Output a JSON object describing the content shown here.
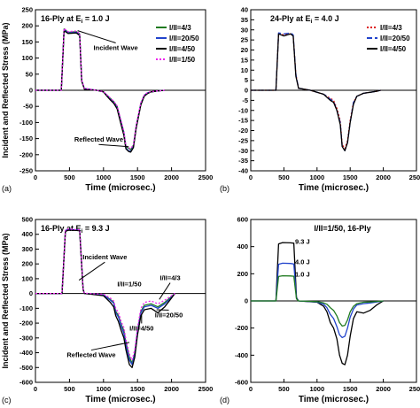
{
  "figure": {
    "shared_ylabel": "Incident and Reflected Stress (MPa)"
  },
  "chart_data": [
    {
      "type": "line",
      "panel": "(a)",
      "title": "16-Ply at E",
      "title_sub": "i",
      "title_tail": " = 1.0 J",
      "xlabel": "Time (microsec.)",
      "ylabel": "Incident and Reflected Stress (MPa)",
      "xlim": [
        0,
        2500
      ],
      "ylim": [
        -250,
        250
      ],
      "xticks": [
        0,
        500,
        1000,
        1500,
        2000,
        2500
      ],
      "yticks": [
        -250,
        -200,
        -150,
        -100,
        -50,
        0,
        50,
        100,
        150,
        200,
        250
      ],
      "legend": "top-right",
      "annotations": [
        {
          "text": "Incident Wave",
          "x": 1180,
          "y": 125,
          "arrow_to": [
            620,
            185
          ]
        },
        {
          "text": "Reflected Wave",
          "x": 930,
          "y": -160,
          "arrow_to": [
            1370,
            -175
          ]
        }
      ],
      "series": [
        {
          "name": "I/II=4/3",
          "color": "#1f7a1f",
          "style": "solid",
          "x": [
            0,
            380,
            420,
            480,
            600,
            650,
            680,
            720,
            900,
            1000,
            1050,
            1100,
            1150,
            1200,
            1250,
            1300,
            1330,
            1370,
            1400,
            1440,
            1480,
            1550,
            1600,
            1650,
            1700,
            1800,
            1900
          ],
          "y": [
            0,
            0,
            190,
            180,
            182,
            175,
            30,
            5,
            0,
            -5,
            -15,
            -25,
            -35,
            -50,
            -90,
            -130,
            -175,
            -180,
            -185,
            -170,
            -110,
            -40,
            -15,
            -8,
            -5,
            -2,
            0
          ]
        },
        {
          "name": "I/II=20/50",
          "color": "#2244cc",
          "style": "solid",
          "x": [
            0,
            380,
            420,
            480,
            600,
            650,
            680,
            720,
            900,
            1000,
            1050,
            1100,
            1150,
            1200,
            1250,
            1300,
            1330,
            1370,
            1400,
            1440,
            1480,
            1550,
            1600,
            1650,
            1700,
            1800,
            1900
          ],
          "y": [
            0,
            0,
            188,
            178,
            180,
            172,
            30,
            5,
            0,
            -5,
            -16,
            -28,
            -38,
            -55,
            -95,
            -135,
            -180,
            -188,
            -190,
            -175,
            -115,
            -42,
            -16,
            -8,
            -5,
            -2,
            0
          ]
        },
        {
          "name": "I/II=4/50",
          "color": "#000000",
          "style": "solid",
          "x": [
            0,
            380,
            420,
            480,
            600,
            650,
            680,
            720,
            900,
            1000,
            1050,
            1100,
            1150,
            1200,
            1250,
            1300,
            1330,
            1370,
            1400,
            1440,
            1480,
            1550,
            1600,
            1650,
            1700,
            1800,
            1900
          ],
          "y": [
            0,
            0,
            185,
            176,
            178,
            170,
            28,
            3,
            0,
            -5,
            -18,
            -30,
            -40,
            -58,
            -100,
            -140,
            -182,
            -190,
            -192,
            -178,
            -118,
            -45,
            -18,
            -10,
            -5,
            -2,
            0
          ]
        },
        {
          "name": "I/II=1/50",
          "color": "#ee22ee",
          "style": "dotted",
          "x": [
            0,
            380,
            420,
            480,
            600,
            650,
            680,
            720,
            900,
            1000,
            1050,
            1100,
            1150,
            1200,
            1250,
            1300,
            1330,
            1370,
            1400,
            1440,
            1480,
            1550,
            1600,
            1650,
            1700,
            1800,
            1900
          ],
          "y": [
            0,
            0,
            192,
            182,
            184,
            176,
            32,
            6,
            0,
            -4,
            -14,
            -24,
            -34,
            -48,
            -88,
            -128,
            -172,
            -178,
            -182,
            -168,
            -108,
            -38,
            -14,
            -7,
            -4,
            -2,
            0
          ]
        }
      ]
    },
    {
      "type": "line",
      "panel": "(b)",
      "title": "24-Ply at E",
      "title_sub": "i",
      "title_tail": " = 4.0 J",
      "xlabel": "Time (microsec.)",
      "ylabel": "",
      "xlim": [
        0,
        2500
      ],
      "ylim": [
        -40,
        40
      ],
      "xticks": [
        0,
        500,
        1000,
        1500,
        2000,
        2500
      ],
      "yticks": [
        -40,
        -35,
        -30,
        -25,
        -20,
        -15,
        -10,
        -5,
        0,
        5,
        10,
        15,
        20,
        25,
        30,
        35,
        40
      ],
      "legend": "top-right",
      "annotations": [],
      "series": [
        {
          "name": "I/II=4/3",
          "color": "#dd1111",
          "style": "dotted",
          "x": [
            0,
            380,
            420,
            500,
            600,
            640,
            680,
            720,
            900,
            1000,
            1100,
            1150,
            1200,
            1250,
            1300,
            1350,
            1380,
            1420,
            1460,
            1500,
            1550,
            1600,
            1700,
            1800,
            1900,
            1960
          ],
          "y": [
            0,
            0,
            28,
            27.5,
            28,
            27,
            8,
            1,
            0,
            -1,
            -2,
            -3,
            -4,
            -5,
            -9,
            -15,
            -27,
            -29,
            -25,
            -15,
            -6,
            -3,
            -1.5,
            -1,
            -0.5,
            0
          ]
        },
        {
          "name": "I/II=20/50",
          "color": "#2244cc",
          "style": "dashed",
          "x": [
            0,
            380,
            420,
            500,
            600,
            640,
            680,
            720,
            900,
            1000,
            1100,
            1150,
            1200,
            1250,
            1300,
            1350,
            1380,
            1420,
            1460,
            1500,
            1550,
            1600,
            1700,
            1800,
            1900,
            1960
          ],
          "y": [
            0,
            0,
            28.5,
            28,
            28.5,
            27.5,
            8,
            1,
            0,
            -1,
            -2,
            -3,
            -4.5,
            -5.5,
            -10,
            -16,
            -28,
            -30,
            -26,
            -16,
            -6,
            -3,
            -1.5,
            -1,
            -0.5,
            0
          ]
        },
        {
          "name": "I/II=4/50",
          "color": "#000000",
          "style": "solid",
          "x": [
            0,
            380,
            420,
            500,
            600,
            640,
            680,
            720,
            900,
            1000,
            1100,
            1150,
            1200,
            1250,
            1300,
            1350,
            1380,
            1420,
            1460,
            1500,
            1550,
            1600,
            1700,
            1800,
            1900,
            1960
          ],
          "y": [
            0,
            0,
            28,
            27,
            28,
            27,
            7,
            1,
            0,
            -1,
            -2,
            -3.5,
            -5,
            -6,
            -10,
            -17,
            -28,
            -30,
            -26,
            -16,
            -7,
            -3,
            -1.5,
            -1,
            -0.5,
            0
          ]
        }
      ]
    },
    {
      "type": "line",
      "panel": "(c)",
      "title": "16-Ply at E",
      "title_sub": "i",
      "title_tail": " = 9.3 J",
      "xlabel": "Time (microsec.)",
      "ylabel": "Incident and Reflected Stress (MPa)",
      "xlim": [
        0,
        2500
      ],
      "ylim": [
        -600,
        500
      ],
      "xticks": [
        0,
        500,
        1000,
        1500,
        2000,
        2500
      ],
      "yticks": [
        -600,
        -500,
        -400,
        -300,
        -200,
        -100,
        0,
        100,
        200,
        300,
        400,
        500
      ],
      "legend": "none",
      "annotations": [
        {
          "text": "Incident  Wave",
          "x": 1020,
          "y": 230,
          "arrow_to": [
            640,
            90
          ]
        },
        {
          "text": "Reflected Wave",
          "x": 820,
          "y": -430,
          "arrow_to": [
            1380,
            -330
          ]
        },
        {
          "text": "I/II=1/50",
          "x": 1380,
          "y": 50,
          "arrow_to": []
        },
        {
          "text": "I/II=4/3",
          "x": 1980,
          "y": 90,
          "arrow_to": [
            1820,
            -40
          ]
        },
        {
          "text": "I/II=20/50",
          "x": 1960,
          "y": -160,
          "arrow_to": [
            1780,
            -110
          ]
        },
        {
          "text": "I/II=4/50",
          "x": 1560,
          "y": -250,
          "arrow_to": [
            1560,
            -140
          ]
        }
      ],
      "series": [
        {
          "name": "",
          "color": "#1f7a1f",
          "style": "solid",
          "x": [
            0,
            390,
            440,
            480,
            600,
            650,
            700,
            720,
            1000,
            1100,
            1150,
            1180,
            1220,
            1260,
            1300,
            1330,
            1380,
            1420,
            1460,
            1500,
            1550,
            1600,
            1700,
            1800,
            1900,
            2000,
            2050
          ],
          "y": [
            0,
            0,
            420,
            430,
            428,
            425,
            30,
            0,
            -10,
            -40,
            -60,
            -120,
            -150,
            -210,
            -250,
            -330,
            -430,
            -470,
            -400,
            -250,
            -120,
            -80,
            -70,
            -90,
            -60,
            -20,
            0
          ]
        },
        {
          "name": "",
          "color": "#2244cc",
          "style": "solid",
          "x": [
            0,
            390,
            440,
            480,
            600,
            650,
            700,
            720,
            1000,
            1100,
            1150,
            1180,
            1220,
            1260,
            1300,
            1330,
            1380,
            1420,
            1460,
            1500,
            1550,
            1600,
            1700,
            1800,
            1900,
            2000,
            2050
          ],
          "y": [
            0,
            0,
            425,
            432,
            430,
            428,
            30,
            0,
            -10,
            -45,
            -65,
            -130,
            -160,
            -220,
            -270,
            -350,
            -450,
            -480,
            -410,
            -260,
            -130,
            -90,
            -80,
            -100,
            -70,
            -25,
            0
          ]
        },
        {
          "name": "",
          "color": "#000000",
          "style": "solid",
          "x": [
            0,
            390,
            440,
            480,
            600,
            650,
            700,
            720,
            1000,
            1100,
            1150,
            1180,
            1220,
            1260,
            1300,
            1330,
            1380,
            1420,
            1460,
            1500,
            1550,
            1600,
            1700,
            1800,
            1900,
            2000,
            2050
          ],
          "y": [
            0,
            0,
            418,
            428,
            426,
            424,
            25,
            0,
            -15,
            -60,
            -90,
            -150,
            -190,
            -250,
            -300,
            -380,
            -480,
            -500,
            -430,
            -280,
            -150,
            -110,
            -100,
            -130,
            -90,
            -30,
            0
          ]
        },
        {
          "name": "",
          "color": "#ee22ee",
          "style": "dotted",
          "x": [
            0,
            390,
            440,
            480,
            600,
            650,
            700,
            720,
            1000,
            1100,
            1150,
            1180,
            1220,
            1260,
            1300,
            1330,
            1380,
            1420,
            1460,
            1500,
            1550,
            1600,
            1700,
            1800,
            1900,
            2000,
            2050
          ],
          "y": [
            0,
            0,
            428,
            436,
            432,
            430,
            32,
            2,
            -5,
            -30,
            -50,
            -100,
            -130,
            -190,
            -230,
            -310,
            -410,
            -450,
            -380,
            -230,
            -100,
            -60,
            -50,
            -70,
            -45,
            -15,
            0
          ]
        }
      ]
    },
    {
      "type": "line",
      "panel": "(d)",
      "title": "I/II=1/50, 16-Ply",
      "xlabel": "Time (microsec.)",
      "ylabel": "",
      "xlim": [
        0,
        2500
      ],
      "ylim": [
        -600,
        600
      ],
      "xticks": [
        0,
        500,
        1000,
        1500,
        2000,
        2500
      ],
      "yticks": [
        -600,
        -400,
        -200,
        0,
        200,
        400,
        600
      ],
      "legend": "none",
      "annotations": [
        {
          "text": "9.3 J",
          "x": 780,
          "y": 420
        },
        {
          "text": "4.0 J",
          "x": 780,
          "y": 270
        },
        {
          "text": "1.0 J",
          "x": 780,
          "y": 180
        }
      ],
      "series": [
        {
          "name": "",
          "color": "#000000",
          "style": "solid",
          "x": [
            0,
            380,
            420,
            480,
            600,
            650,
            690,
            720,
            1000,
            1100,
            1150,
            1200,
            1250,
            1300,
            1340,
            1380,
            1420,
            1460,
            1500,
            1550,
            1600,
            1700,
            1800,
            1900,
            2000
          ],
          "y": [
            0,
            0,
            420,
            430,
            428,
            425,
            25,
            0,
            -10,
            -40,
            -80,
            -160,
            -200,
            -280,
            -400,
            -460,
            -470,
            -400,
            -260,
            -130,
            -80,
            -90,
            -70,
            -30,
            0
          ]
        },
        {
          "name": "",
          "color": "#2244cc",
          "style": "solid",
          "x": [
            0,
            380,
            420,
            480,
            600,
            650,
            690,
            720,
            1000,
            1100,
            1150,
            1200,
            1250,
            1300,
            1340,
            1380,
            1420,
            1460,
            1500,
            1550,
            1600,
            1700,
            1800,
            1900,
            2000
          ],
          "y": [
            0,
            0,
            270,
            278,
            276,
            272,
            20,
            0,
            -8,
            -25,
            -50,
            -100,
            -130,
            -190,
            -250,
            -270,
            -260,
            -200,
            -120,
            -60,
            -30,
            -20,
            -15,
            -8,
            0
          ]
        },
        {
          "name": "",
          "color": "#1f7a1f",
          "style": "solid",
          "x": [
            0,
            380,
            420,
            480,
            600,
            650,
            690,
            720,
            1000,
            1100,
            1150,
            1200,
            1250,
            1300,
            1340,
            1380,
            1420,
            1460,
            1500,
            1550,
            1600,
            1700,
            1800,
            1900,
            2000
          ],
          "y": [
            0,
            0,
            180,
            185,
            184,
            182,
            15,
            0,
            -5,
            -15,
            -25,
            -50,
            -70,
            -110,
            -160,
            -185,
            -180,
            -140,
            -80,
            -40,
            -20,
            -10,
            -8,
            -4,
            0
          ]
        }
      ]
    }
  ]
}
